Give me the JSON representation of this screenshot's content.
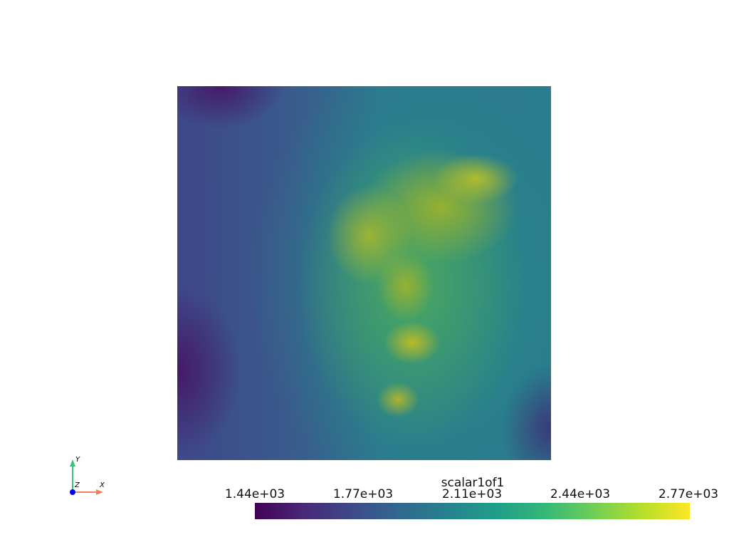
{
  "chart_data": {
    "type": "heatmap",
    "colormap": "viridis",
    "colorbar": {
      "title": "scalar1of1",
      "ticks": [
        "1.44e+03",
        "1.77e+03",
        "2.11e+03",
        "2.44e+03",
        "2.77e+03"
      ],
      "range": [
        1440,
        2770
      ]
    },
    "orientation_axes": {
      "x": "X",
      "y": "Y",
      "z": "Z"
    },
    "colors": {
      "x_axis": "#f08060",
      "y_axis": "#40c080",
      "z_axis": "#0000ff"
    }
  }
}
